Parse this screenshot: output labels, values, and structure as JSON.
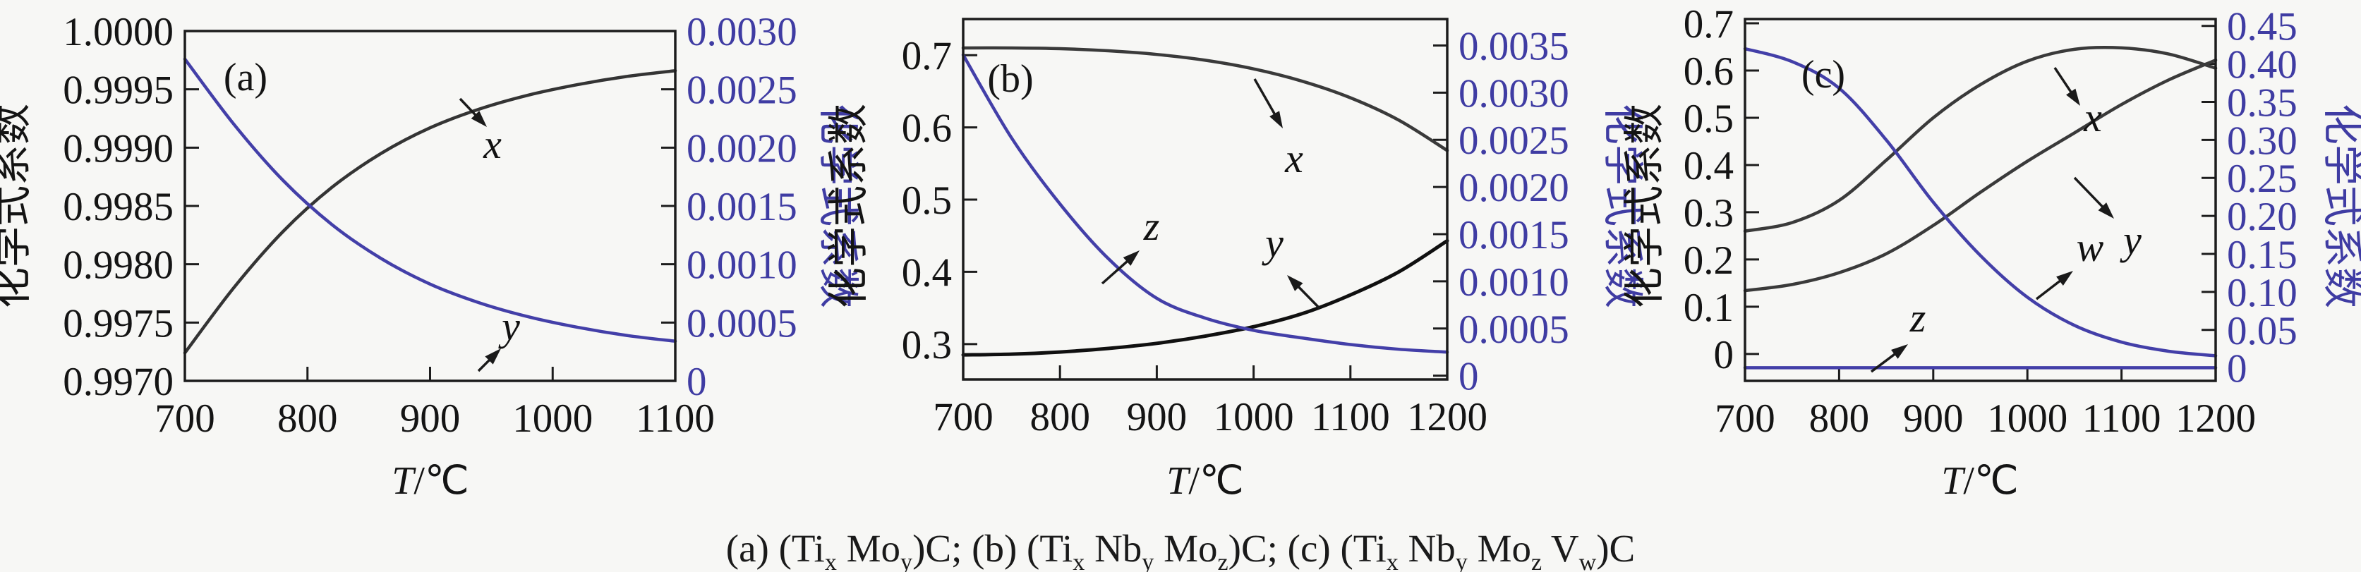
{
  "figure": {
    "background": "#f7f7f5",
    "frame_color": "#1c1c1c",
    "accent_blue": "#3f3ca3",
    "caption": {
      "segments": [
        {
          "t": "(a) (Ti"
        },
        {
          "t": "x",
          "sub": true
        },
        {
          "t": " Mo"
        },
        {
          "t": "y",
          "sub": true
        },
        {
          "t": ")C; (b) (Ti"
        },
        {
          "t": "x",
          "sub": true
        },
        {
          "t": " Nb"
        },
        {
          "t": "y",
          "sub": true
        },
        {
          "t": " Mo"
        },
        {
          "t": "z",
          "sub": true
        },
        {
          "t": ")C; (c) (Ti"
        },
        {
          "t": "x",
          "sub": true
        },
        {
          "t": " Nb"
        },
        {
          "t": "y",
          "sub": true
        },
        {
          "t": " Mo"
        },
        {
          "t": "z",
          "sub": true
        },
        {
          "t": " V"
        },
        {
          "t": "w",
          "sub": true
        },
        {
          "t": ")C"
        }
      ]
    }
  },
  "chart_data": [
    {
      "type": "line",
      "id": "a",
      "panel_label": "(a)",
      "panel_label_pos": [
        348,
        128
      ],
      "frame": [
        262,
        44,
        957,
        540
      ],
      "xlim": [
        700,
        1100
      ],
      "x_ticks": [
        {
          "v": 700,
          "t": "700"
        },
        {
          "v": 800,
          "t": "800"
        },
        {
          "v": 900,
          "t": "900"
        },
        {
          "v": 1000,
          "t": "1000"
        },
        {
          "v": 1100,
          "t": "1100"
        }
      ],
      "xlabel": {
        "italic": "T",
        "rest": "/℃",
        "pos": [
          610,
          700
        ]
      },
      "left_axis": {
        "label": "化学式系数",
        "color": "#141414",
        "title_pos": [
          36,
          292
        ],
        "lim": [
          0.997,
          1.0
        ],
        "ticks": [
          {
            "v": 0.997,
            "t": "0.9970"
          },
          {
            "v": 0.9975,
            "t": "0.9975"
          },
          {
            "v": 0.998,
            "t": "0.9980"
          },
          {
            "v": 0.9985,
            "t": "0.9985"
          },
          {
            "v": 0.999,
            "t": "0.9990"
          },
          {
            "v": 0.9995,
            "t": "0.9995"
          },
          {
            "v": 1.0,
            "t": "1.0000"
          }
        ]
      },
      "right_axis": {
        "label": "化学式系数",
        "color": "#3f3ca3",
        "title_pos": [
          1168,
          292
        ],
        "lim": [
          0,
          0.003
        ],
        "ticks": [
          {
            "v": 0,
            "t": "0"
          },
          {
            "v": 0.0005,
            "t": "0.0005"
          },
          {
            "v": 0.001,
            "t": "0.0010"
          },
          {
            "v": 0.0015,
            "t": "0.0015"
          },
          {
            "v": 0.002,
            "t": "0.0020"
          },
          {
            "v": 0.0025,
            "t": "0.0025"
          },
          {
            "v": 0.003,
            "t": "0.0030"
          }
        ]
      },
      "x": [
        700,
        740,
        780,
        820,
        860,
        900,
        940,
        980,
        1020,
        1060,
        1100
      ],
      "series": [
        {
          "name": "x",
          "axis": "left",
          "color": "#343434",
          "width": 4.5,
          "values": [
            0.99724,
            0.9978,
            0.99828,
            0.99866,
            0.99895,
            0.99917,
            0.99933,
            0.99945,
            0.99954,
            0.99961,
            0.99966
          ]
        },
        {
          "name": "y",
          "axis": "right",
          "color": "#433fa8",
          "width": 4.5,
          "values": [
            0.00276,
            0.0022,
            0.00172,
            0.00134,
            0.00105,
            0.00083,
            0.00067,
            0.00055,
            0.00046,
            0.00039,
            0.00034
          ]
        }
      ],
      "annotations": [
        {
          "label": "x",
          "label_pos": [
            698,
            224
          ],
          "tail": [
            652,
            140
          ],
          "head": [
            690,
            180
          ]
        },
        {
          "label": "y",
          "label_pos": [
            724,
            482
          ],
          "tail": [
            678,
            526
          ],
          "head": [
            710,
            494
          ]
        }
      ]
    },
    {
      "type": "line",
      "id": "b",
      "panel_label": "(b)",
      "panel_label_pos": [
        1432,
        130
      ],
      "frame": [
        1365,
        27,
        2051,
        538
      ],
      "xlim": [
        700,
        1200
      ],
      "x_ticks": [
        {
          "v": 700,
          "t": "700"
        },
        {
          "v": 800,
          "t": "800"
        },
        {
          "v": 900,
          "t": "900"
        },
        {
          "v": 1000,
          "t": "1000"
        },
        {
          "v": 1100,
          "t": "1100"
        },
        {
          "v": 1200,
          "t": "1200"
        }
      ],
      "xlabel": {
        "italic": "T",
        "rest": "/℃",
        "pos": [
          1708,
          700
        ]
      },
      "left_axis": {
        "label": "化学式系数",
        "color": "#141414",
        "title_pos": [
          1222,
          292
        ],
        "lim": [
          0.251,
          0.75
        ],
        "ticks": [
          {
            "v": 0.3,
            "t": "0.3"
          },
          {
            "v": 0.4,
            "t": "0.4"
          },
          {
            "v": 0.5,
            "t": "0.5"
          },
          {
            "v": 0.6,
            "t": "0.6"
          },
          {
            "v": 0.7,
            "t": "0.7"
          }
        ]
      },
      "right_axis": {
        "label": "化学式系数",
        "color": "#3f3ca3",
        "title_pos": [
          2280,
          292
        ],
        "lim": [
          -4e-05,
          0.00378
        ],
        "ticks": [
          {
            "v": 0,
            "t": "0"
          },
          {
            "v": 0.0005,
            "t": "0.0005"
          },
          {
            "v": 0.001,
            "t": "0.0010"
          },
          {
            "v": 0.0015,
            "t": "0.0015"
          },
          {
            "v": 0.002,
            "t": "0.0020"
          },
          {
            "v": 0.0025,
            "t": "0.0025"
          },
          {
            "v": 0.003,
            "t": "0.0030"
          },
          {
            "v": 0.0035,
            "t": "0.0035"
          }
        ]
      },
      "x": [
        700,
        750,
        800,
        850,
        900,
        950,
        1000,
        1050,
        1100,
        1150,
        1200
      ],
      "series": [
        {
          "name": "x",
          "axis": "left",
          "color": "#3a3a3a",
          "width": 4.5,
          "values": [
            0.71,
            0.71,
            0.709,
            0.706,
            0.701,
            0.693,
            0.681,
            0.664,
            0.641,
            0.61,
            0.568
          ]
        },
        {
          "name": "y",
          "axis": "left",
          "color": "#101010",
          "width": 5,
          "values": [
            0.285,
            0.286,
            0.289,
            0.294,
            0.301,
            0.311,
            0.324,
            0.342,
            0.368,
            0.4,
            0.443
          ]
        },
        {
          "name": "z",
          "axis": "right",
          "color": "#433fa8",
          "width": 4.5,
          "values": [
            0.0034,
            0.00252,
            0.00182,
            0.00124,
            0.00082,
            0.00061,
            0.00048,
            0.0004,
            0.00033,
            0.00028,
            0.00025
          ]
        }
      ],
      "annotations": [
        {
          "label": "x",
          "label_pos": [
            1834,
            244
          ],
          "tail": [
            1778,
            112
          ],
          "head": [
            1818,
            182
          ]
        },
        {
          "label": "y",
          "label_pos": [
            1806,
            364
          ],
          "tail": [
            1870,
            437
          ],
          "head": [
            1824,
            390
          ]
        },
        {
          "label": "z",
          "label_pos": [
            1632,
            340
          ],
          "tail": [
            1562,
            402
          ],
          "head": [
            1615,
            355
          ]
        }
      ]
    },
    {
      "type": "line",
      "id": "c",
      "panel_label": "(c)",
      "panel_label_pos": [
        2584,
        124
      ],
      "frame": [
        2473,
        27,
        3140,
        540
      ],
      "xlim": [
        700,
        1200
      ],
      "x_ticks": [
        {
          "v": 700,
          "t": "700"
        },
        {
          "v": 800,
          "t": "800"
        },
        {
          "v": 900,
          "t": "900"
        },
        {
          "v": 1000,
          "t": "1000"
        },
        {
          "v": 1100,
          "t": "1100"
        },
        {
          "v": 1200,
          "t": "1200"
        }
      ],
      "xlabel": {
        "italic": "T",
        "rest": "/℃",
        "pos": [
          2806,
          700
        ]
      },
      "left_axis": {
        "label": "化学式系数",
        "color": "#141414",
        "title_pos": [
          2350,
          292
        ],
        "lim": [
          -0.057,
          0.709
        ],
        "ticks": [
          {
            "v": 0,
            "t": "0"
          },
          {
            "v": 0.1,
            "t": "0.1"
          },
          {
            "v": 0.2,
            "t": "0.2"
          },
          {
            "v": 0.3,
            "t": "0.3"
          },
          {
            "v": 0.4,
            "t": "0.4"
          },
          {
            "v": 0.5,
            "t": "0.5"
          },
          {
            "v": 0.6,
            "t": "0.6"
          },
          {
            "v": 0.7,
            "t": "0.7"
          }
        ]
      },
      "right_axis": {
        "label": "化学式系数",
        "color": "#3f3ca3",
        "title_pos": [
          3300,
          292
        ],
        "lim": [
          -0.017,
          0.459
        ],
        "ticks": [
          {
            "v": 0,
            "t": "0"
          },
          {
            "v": 0.05,
            "t": "0.05"
          },
          {
            "v": 0.1,
            "t": "0.10"
          },
          {
            "v": 0.15,
            "t": "0.15"
          },
          {
            "v": 0.2,
            "t": "0.20"
          },
          {
            "v": 0.25,
            "t": "0.25"
          },
          {
            "v": 0.3,
            "t": "0.30"
          },
          {
            "v": 0.35,
            "t": "0.35"
          },
          {
            "v": 0.4,
            "t": "0.40"
          },
          {
            "v": 0.45,
            "t": "0.45"
          }
        ]
      },
      "x": [
        700,
        750,
        800,
        850,
        900,
        950,
        1000,
        1050,
        1100,
        1150,
        1200
      ],
      "series": [
        {
          "name": "x",
          "axis": "left",
          "color": "#3a3a3a",
          "width": 4.5,
          "values": [
            0.26,
            0.278,
            0.325,
            0.41,
            0.5,
            0.57,
            0.62,
            0.645,
            0.648,
            0.635,
            0.605
          ]
        },
        {
          "name": "y",
          "axis": "left",
          "color": "#3a3a3a",
          "width": 4.5,
          "values": [
            0.134,
            0.147,
            0.172,
            0.212,
            0.272,
            0.342,
            0.408,
            0.468,
            0.528,
            0.58,
            0.622
          ]
        },
        {
          "name": "w",
          "axis": "right",
          "color": "#433fa8",
          "width": 4.5,
          "values": [
            0.42,
            0.403,
            0.368,
            0.3,
            0.218,
            0.148,
            0.093,
            0.056,
            0.034,
            0.022,
            0.016
          ]
        },
        {
          "name": "z",
          "axis": "right",
          "color": "#433fa8",
          "width": 4.5,
          "values": [
            0.0003,
            0.0003,
            0.0003,
            0.0003,
            0.0003,
            0.0003,
            0.0003,
            0.0003,
            0.0003,
            0.0003,
            0.0003
          ]
        }
      ],
      "annotations": [
        {
          "label": "x",
          "label_pos": [
            2966,
            186
          ],
          "tail": [
            2912,
            96
          ],
          "head": [
            2948,
            150
          ]
        },
        {
          "label": "y",
          "label_pos": [
            3022,
            360
          ],
          "tail": [
            2940,
            252
          ],
          "head": [
            2996,
            310
          ]
        },
        {
          "label": "w",
          "label_pos": [
            2962,
            370
          ],
          "tail": [
            2886,
            424
          ],
          "head": [
            2938,
            384
          ]
        },
        {
          "label": "z",
          "label_pos": [
            2718,
            470
          ],
          "tail": [
            2652,
            527
          ],
          "head": [
            2704,
            488
          ]
        }
      ]
    }
  ]
}
